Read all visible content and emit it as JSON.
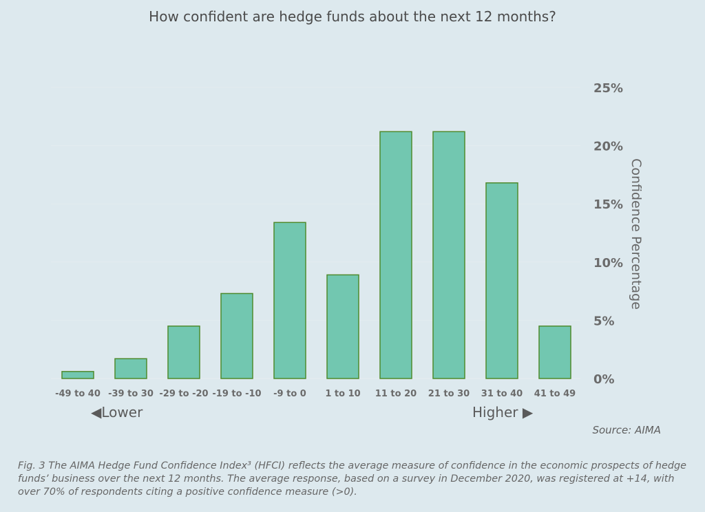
{
  "chart_data": {
    "type": "bar",
    "title": "How confident are hedge funds about the next 12 months?",
    "categories": [
      "-49 to 40",
      "-39 to 30",
      "-29 to -20",
      "-19 to -10",
      "-9 to 0",
      "1 to 10",
      "11 to 20",
      "21 to 30",
      "31 to 40",
      "41 to 49"
    ],
    "values": [
      0.6,
      1.7,
      4.5,
      7.3,
      13.4,
      8.9,
      21.2,
      21.2,
      16.8,
      4.5
    ],
    "ylabel": "Confidence Percentage",
    "xlabel": "",
    "ylim": [
      0,
      25
    ],
    "yticks": [
      "0%",
      "5%",
      "10%",
      "15%",
      "20%",
      "25%"
    ],
    "y_axis_position": "right",
    "grid": true,
    "colors": {
      "bar_fill": "#72c7b0",
      "bar_stroke": "#4e8a2c",
      "grid": "#e3ecef",
      "background": "#dde9ee"
    }
  },
  "direction": {
    "lower": "◀Lower",
    "higher": "Higher  ▶"
  },
  "source": "Source: AIMA",
  "caption": "Fig. 3 The AIMA Hedge Fund Confidence Index³ (HFCI) reflects the average measure of confidence in the economic prospects of hedge funds’ business over the next 12 months. The average response, based on a survey in December 2020, was registered at +14, with over 70% of respondents citing a positive confidence measure (>0)."
}
